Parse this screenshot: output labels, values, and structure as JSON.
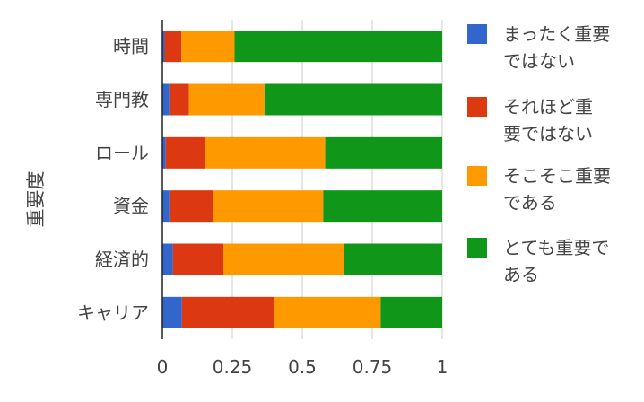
{
  "chart_data": {
    "type": "bar",
    "orientation": "horizontal",
    "stacked": true,
    "ylabel": "重要度",
    "categories": [
      "時間",
      "専門教",
      "ロール",
      "資金",
      "経済的",
      "キャリア"
    ],
    "xlim": [
      0,
      1
    ],
    "xticks": [
      "0",
      "0.25",
      "0.5",
      "0.75",
      "1"
    ],
    "grid": true,
    "legend_position": "right",
    "series": [
      {
        "name": "まったく重要ではない",
        "legend_lines": [
          "まったく重要",
          "ではない"
        ],
        "color": "#3366cc",
        "values": [
          0.008,
          0.025,
          0.012,
          0.025,
          0.038,
          0.07
        ]
      },
      {
        "name": "それほど重要ではない",
        "legend_lines": [
          "それほど重",
          "要ではない"
        ],
        "color": "#dc3912",
        "values": [
          0.06,
          0.07,
          0.14,
          0.155,
          0.18,
          0.33
        ]
      },
      {
        "name": "そこそこ重要である",
        "legend_lines": [
          "そこそこ重要",
          "である"
        ],
        "color": "#ff9900",
        "values": [
          0.19,
          0.27,
          0.43,
          0.395,
          0.43,
          0.38
        ]
      },
      {
        "name": "とても重要である",
        "legend_lines": [
          "とても重要で",
          "ある"
        ],
        "color": "#109618",
        "values": [
          0.742,
          0.635,
          0.418,
          0.425,
          0.352,
          0.22
        ]
      }
    ]
  }
}
